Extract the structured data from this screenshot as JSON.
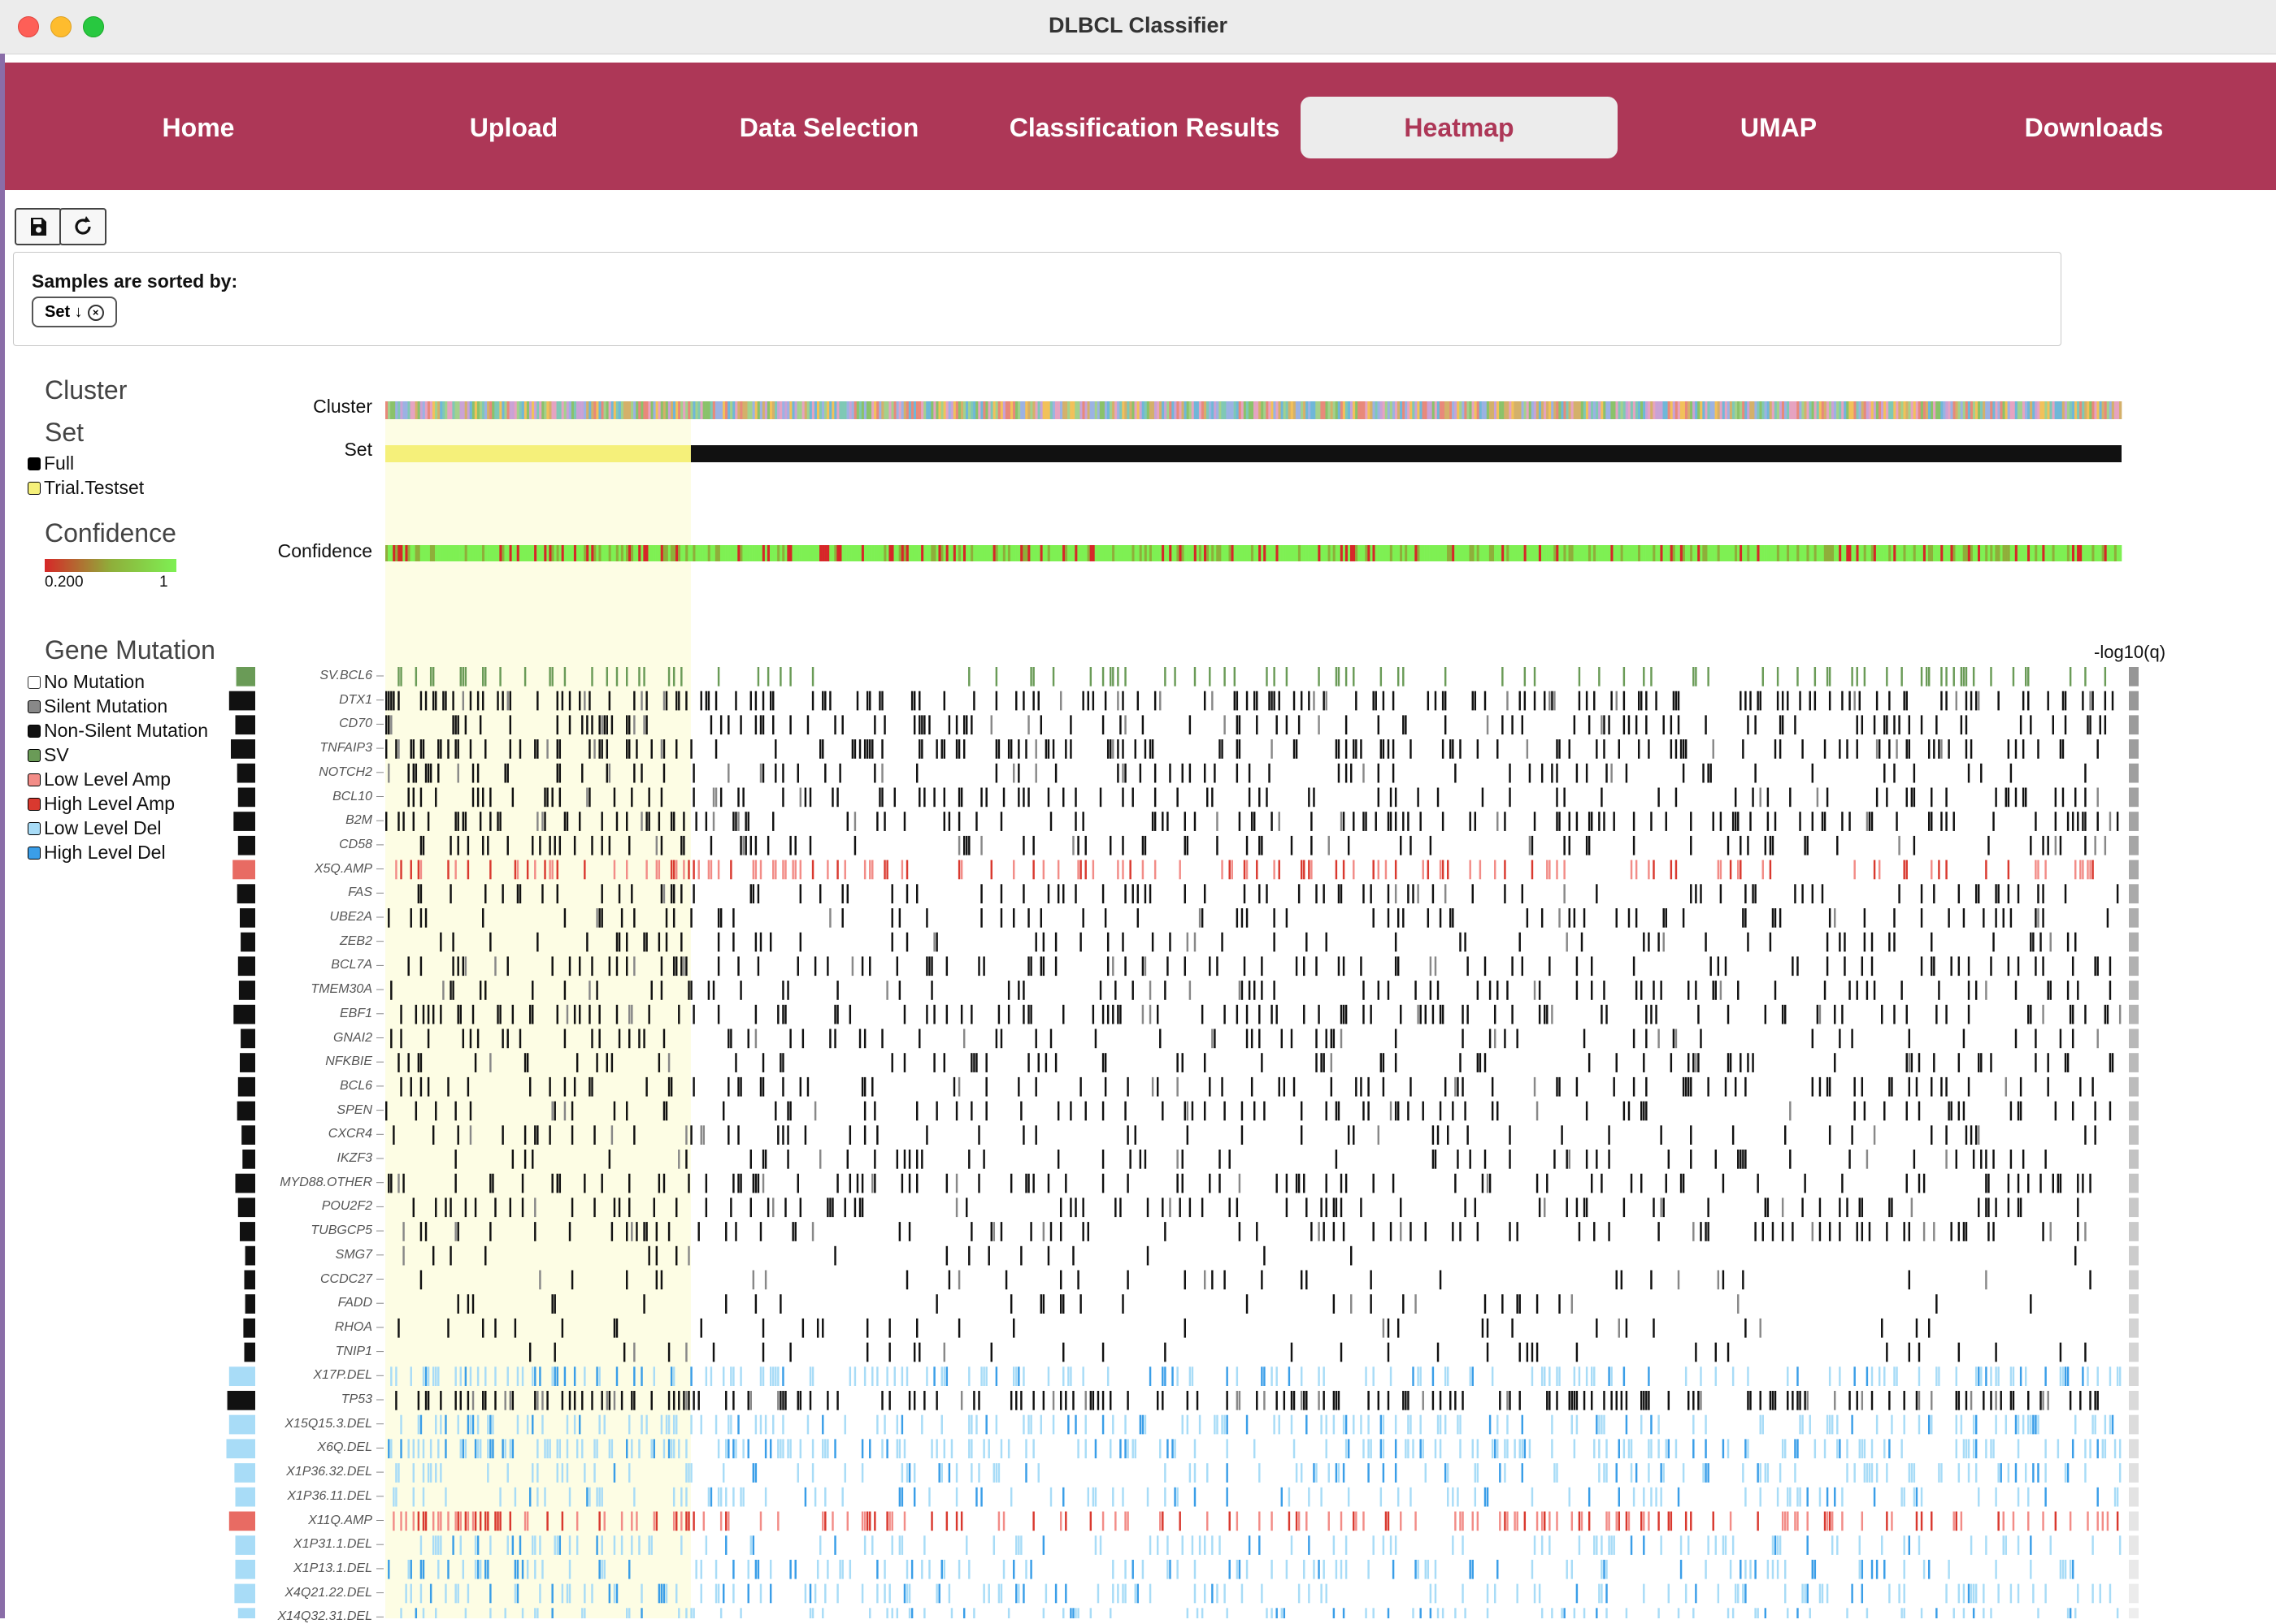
{
  "window": {
    "title": "DLBCL Classifier"
  },
  "nav": {
    "tabs": [
      {
        "label": "Home",
        "active": false
      },
      {
        "label": "Upload",
        "active": false
      },
      {
        "label": "Data Selection",
        "active": false
      },
      {
        "label": "Classification Results",
        "active": false
      },
      {
        "label": "Heatmap",
        "active": true
      },
      {
        "label": "UMAP",
        "active": false
      },
      {
        "label": "Downloads",
        "active": false
      }
    ]
  },
  "toolbar": {
    "save_icon": "save-icon",
    "reload_icon": "reload-icon"
  },
  "sort": {
    "label": "Samples are sorted by:",
    "chip_label": "Set ↓",
    "chip_icon": "close-circle-icon"
  },
  "legend": {
    "cluster_title": "Cluster",
    "set_title": "Set",
    "set_items": [
      {
        "label": "Full",
        "color": "#000000"
      },
      {
        "label": "Trial.Testset",
        "color": "#f5f07a"
      }
    ],
    "confidence_title": "Confidence",
    "confidence_min": "0.200",
    "confidence_max": "1",
    "confidence_colors": [
      "#d62728",
      "#8fae3a",
      "#7ef053"
    ],
    "mutation_title": "Gene Mutation",
    "mutation_items": [
      {
        "label": "No Mutation",
        "color": "#ffffff"
      },
      {
        "label": "Silent Mutation",
        "color": "#888888"
      },
      {
        "label": "Non-Silent Mutation",
        "color": "#111111"
      },
      {
        "label": "SV",
        "color": "#6a9b57"
      },
      {
        "label": "Low Level Amp",
        "color": "#f28c87"
      },
      {
        "label": "High Level Amp",
        "color": "#d9392f"
      },
      {
        "label": "Low Level Del",
        "color": "#a8dcf7"
      },
      {
        "label": "High Level Del",
        "color": "#3a9ee8"
      }
    ]
  },
  "heatmap": {
    "tracks": [
      "Cluster",
      "Set",
      "Confidence"
    ],
    "qvalue_label": "-log10(q)",
    "testset_fraction": 0.176,
    "genes": [
      {
        "name": "SV.BCL6",
        "type": "sv",
        "freq": 0.14
      },
      {
        "name": "DTX1",
        "type": "mut",
        "freq": 0.22
      },
      {
        "name": "CD70",
        "type": "mut",
        "freq": 0.15
      },
      {
        "name": "TNFAIP3",
        "type": "mut",
        "freq": 0.2
      },
      {
        "name": "NOTCH2",
        "type": "mut",
        "freq": 0.13
      },
      {
        "name": "BCL10",
        "type": "mut",
        "freq": 0.12
      },
      {
        "name": "B2M",
        "type": "mut",
        "freq": 0.17
      },
      {
        "name": "CD58",
        "type": "mut",
        "freq": 0.12
      },
      {
        "name": "X5Q.AMP",
        "type": "amp",
        "freq": 0.18
      },
      {
        "name": "FAS",
        "type": "mut",
        "freq": 0.13
      },
      {
        "name": "UBE2A",
        "type": "mut",
        "freq": 0.1
      },
      {
        "name": "ZEB2",
        "type": "mut",
        "freq": 0.09
      },
      {
        "name": "BCL7A",
        "type": "mut",
        "freq": 0.12
      },
      {
        "name": "TMEM30A",
        "type": "mut",
        "freq": 0.11
      },
      {
        "name": "EBF1",
        "type": "mut",
        "freq": 0.17
      },
      {
        "name": "GNAI2",
        "type": "mut",
        "freq": 0.09
      },
      {
        "name": "NFKBIE",
        "type": "mut",
        "freq": 0.1
      },
      {
        "name": "BCL6",
        "type": "mut",
        "freq": 0.12
      },
      {
        "name": "SPEN",
        "type": "mut",
        "freq": 0.13
      },
      {
        "name": "CXCR4",
        "type": "mut",
        "freq": 0.08
      },
      {
        "name": "IKZF3",
        "type": "mut",
        "freq": 0.07
      },
      {
        "name": "MYD88.OTHER",
        "type": "mut",
        "freq": 0.15
      },
      {
        "name": "POU2F2",
        "type": "mut",
        "freq": 0.12
      },
      {
        "name": "TUBGCP5",
        "type": "mut",
        "freq": 0.1
      },
      {
        "name": "SMG7",
        "type": "mut",
        "freq": 0.04
      },
      {
        "name": "CCDC27",
        "type": "mut",
        "freq": 0.05
      },
      {
        "name": "FADD",
        "type": "mut",
        "freq": 0.04
      },
      {
        "name": "RHOA",
        "type": "mut",
        "freq": 0.06
      },
      {
        "name": "TNIP1",
        "type": "mut",
        "freq": 0.05
      },
      {
        "name": "X17P.DEL",
        "type": "del",
        "freq": 0.22
      },
      {
        "name": "TP53",
        "type": "mut",
        "freq": 0.24
      },
      {
        "name": "X15Q15.3.DEL",
        "type": "del",
        "freq": 0.22
      },
      {
        "name": "X6Q.DEL",
        "type": "del",
        "freq": 0.25
      },
      {
        "name": "X1P36.32.DEL",
        "type": "del",
        "freq": 0.16
      },
      {
        "name": "X1P36.11.DEL",
        "type": "del",
        "freq": 0.15
      },
      {
        "name": "X11Q.AMP",
        "type": "amp",
        "freq": 0.22
      },
      {
        "name": "X1P31.1.DEL",
        "type": "del",
        "freq": 0.15
      },
      {
        "name": "X1P13.1.DEL",
        "type": "del",
        "freq": 0.15
      },
      {
        "name": "X4Q21.22.DEL",
        "type": "del",
        "freq": 0.16
      },
      {
        "name": "X14Q32.31.DEL",
        "type": "del",
        "freq": 0.12
      }
    ]
  }
}
